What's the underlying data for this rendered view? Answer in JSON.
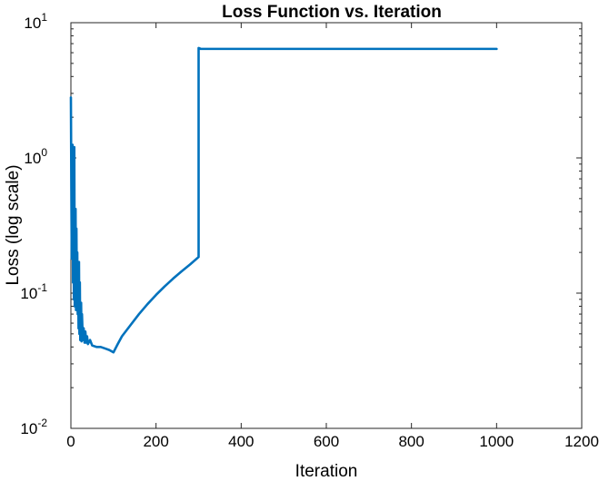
{
  "chart_data": {
    "type": "line",
    "title": "Loss Function vs. Iteration",
    "xlabel": "Iteration",
    "ylabel": "Loss (log scale)",
    "xlim": [
      0,
      1200
    ],
    "ylim": [
      0.01,
      10
    ],
    "yscale": "log",
    "grid": false,
    "x_ticks": [
      0,
      200,
      400,
      600,
      800,
      1000,
      1200
    ],
    "x_tick_labels": [
      "0",
      "200",
      "400",
      "600",
      "800",
      "1000",
      "1200"
    ],
    "y_ticks": [
      {
        "value": 0.01,
        "base": "10",
        "exp": "-2"
      },
      {
        "value": 0.1,
        "base": "10",
        "exp": "-1"
      },
      {
        "value": 1,
        "base": "10",
        "exp": "0"
      },
      {
        "value": 10,
        "base": "10",
        "exp": "1"
      }
    ],
    "line_color": "#0072BD",
    "series": [
      {
        "name": "",
        "x": [
          0,
          1,
          2,
          3,
          4,
          5,
          6,
          7,
          8,
          9,
          10,
          11,
          12,
          13,
          14,
          15,
          16,
          17,
          18,
          19,
          20,
          21,
          22,
          23,
          24,
          25,
          26,
          28,
          30,
          32,
          34,
          36,
          38,
          40,
          45,
          50,
          60,
          70,
          80,
          90,
          100,
          110,
          120,
          140,
          160,
          180,
          200,
          220,
          240,
          260,
          280,
          300,
          300,
          305,
          350,
          400,
          500,
          600,
          700,
          800,
          900,
          1000
        ],
        "y": [
          2.8,
          0.6,
          0.18,
          0.3,
          1.25,
          0.12,
          0.55,
          0.09,
          1.2,
          0.08,
          0.12,
          0.42,
          0.075,
          0.3,
          0.09,
          0.2,
          0.07,
          0.15,
          0.055,
          0.17,
          0.05,
          0.12,
          0.045,
          0.065,
          0.085,
          0.044,
          0.07,
          0.045,
          0.055,
          0.043,
          0.052,
          0.043,
          0.048,
          0.042,
          0.045,
          0.041,
          0.04,
          0.04,
          0.039,
          0.038,
          0.0365,
          0.042,
          0.048,
          0.058,
          0.07,
          0.083,
          0.097,
          0.112,
          0.128,
          0.145,
          0.163,
          0.185,
          6.5,
          6.4,
          6.4,
          6.4,
          6.4,
          6.4,
          6.4,
          6.4,
          6.4,
          6.4
        ]
      }
    ]
  }
}
